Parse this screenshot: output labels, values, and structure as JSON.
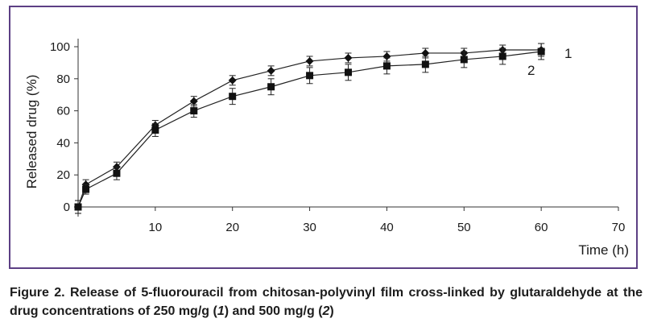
{
  "chart_data": {
    "type": "line",
    "xlabel": "Time (h)",
    "ylabel": "Released drug (%)",
    "xlim": [
      0,
      70
    ],
    "ylim": [
      0,
      100
    ],
    "x_ticks": [
      10,
      20,
      30,
      40,
      50,
      60,
      70
    ],
    "y_ticks": [
      0,
      20,
      40,
      60,
      80,
      100
    ],
    "grid": false,
    "series": [
      {
        "name": "1",
        "marker": "diamond",
        "x": [
          0,
          1,
          5,
          10,
          15,
          20,
          25,
          30,
          35,
          40,
          45,
          50,
          55,
          60
        ],
        "y": [
          0,
          14,
          25,
          51,
          66,
          79,
          85,
          91,
          93,
          94,
          96,
          96,
          98,
          98
        ],
        "error": [
          4,
          3,
          3,
          3,
          3,
          3,
          3,
          3,
          3,
          3,
          3,
          3,
          3,
          4
        ]
      },
      {
        "name": "2",
        "marker": "square",
        "x": [
          0,
          1,
          5,
          10,
          15,
          20,
          25,
          30,
          35,
          40,
          45,
          50,
          55,
          60
        ],
        "y": [
          0,
          11,
          21,
          48,
          60,
          69,
          75,
          82,
          84,
          88,
          89,
          92,
          94,
          97
        ],
        "error": [
          4,
          3,
          4,
          4,
          4,
          5,
          5,
          5,
          5,
          5,
          5,
          5,
          5,
          5
        ]
      }
    ]
  },
  "caption": {
    "prefix": "Figure 2. Release of 5-fluorouracil from chitosan-polyvinyl film cross-linked by glutaraldehyde at the drug concentrations of 250 mg/g (",
    "label1": "1",
    "middle": ") and 500 mg/g (",
    "label2": "2",
    "suffix": ")"
  }
}
